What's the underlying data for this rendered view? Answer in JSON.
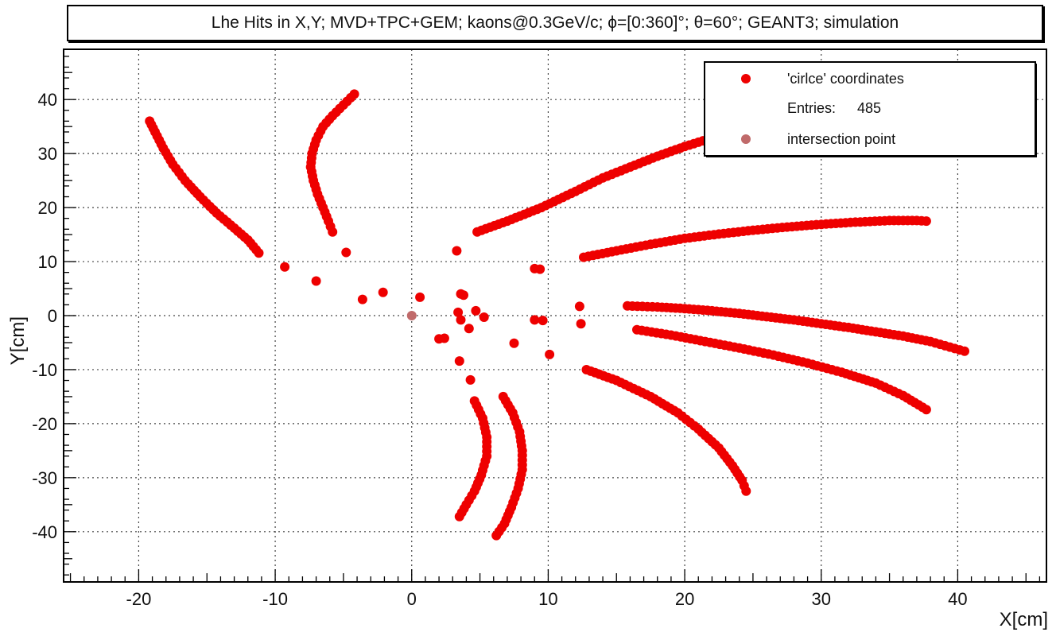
{
  "chart_data": {
    "type": "scatter",
    "title": "Lhe Hits in X,Y; MVD+TPC+GEM; kaons@0.3GeV/c; ϕ=[0:360]°; θ=60°; GEANT3; simulation",
    "xlabel": "X[cm]",
    "ylabel": "Y[cm]",
    "xlim": [
      -25.5,
      46.5
    ],
    "ylim": [
      -49.3,
      49.3
    ],
    "x_ticks": [
      -20,
      -10,
      0,
      10,
      20,
      30,
      40
    ],
    "y_ticks": [
      -40,
      -30,
      -20,
      -10,
      0,
      10,
      20,
      30,
      40
    ],
    "grid": true,
    "legend_position": "top-right",
    "legend": {
      "entries_label": "Entries:",
      "entries_value": "485"
    },
    "series": [
      {
        "name": "'cirlce' coordinates",
        "color": "#ee0000",
        "tracks": [
          [
            [
              -19.2,
              36.0
            ],
            [
              -18.8,
              34.0
            ],
            [
              -18.2,
              31.0
            ],
            [
              -17.5,
              28.0
            ],
            [
              -16.6,
              25.0
            ],
            [
              -15.5,
              22.0
            ],
            [
              -14.3,
              19.0
            ],
            [
              -13.0,
              16.2
            ],
            [
              -12.0,
              14.0
            ],
            [
              -11.2,
              11.6
            ]
          ],
          [
            [
              -4.2,
              41.0
            ],
            [
              -5.0,
              39.0
            ],
            [
              -5.8,
              37.0
            ],
            [
              -6.5,
              35.0
            ],
            [
              -7.0,
              32.5
            ],
            [
              -7.3,
              30.0
            ],
            [
              -7.4,
              27.5
            ],
            [
              -7.2,
              25.0
            ],
            [
              -6.9,
              22.5
            ],
            [
              -6.5,
              20.0
            ],
            [
              -6.1,
              17.5
            ],
            [
              -5.8,
              15.5
            ]
          ],
          [
            [
              4.8,
              15.5
            ],
            [
              7.0,
              17.5
            ],
            [
              9.5,
              20.0
            ],
            [
              12.0,
              23.0
            ],
            [
              14.0,
              25.5
            ],
            [
              16.0,
              27.5
            ],
            [
              18.0,
              29.5
            ],
            [
              20.0,
              31.3
            ],
            [
              22.0,
              32.9
            ],
            [
              24.0,
              34.2
            ],
            [
              25.7,
              35.2
            ]
          ],
          [
            [
              12.6,
              10.8
            ],
            [
              15.0,
              12.0
            ],
            [
              17.5,
              13.2
            ],
            [
              20.0,
              14.3
            ],
            [
              22.5,
              15.1
            ],
            [
              25.0,
              15.8
            ],
            [
              27.5,
              16.4
            ],
            [
              30.0,
              16.9
            ],
            [
              32.5,
              17.3
            ],
            [
              35.0,
              17.6
            ],
            [
              37.0,
              17.6
            ],
            [
              37.7,
              17.5
            ]
          ],
          [
            [
              15.8,
              1.8
            ],
            [
              18.0,
              1.6
            ],
            [
              20.0,
              1.3
            ],
            [
              22.0,
              0.9
            ],
            [
              24.0,
              0.4
            ],
            [
              26.0,
              -0.2
            ],
            [
              28.0,
              -0.8
            ],
            [
              30.0,
              -1.5
            ],
            [
              32.0,
              -2.2
            ],
            [
              34.0,
              -3.0
            ],
            [
              36.0,
              -3.8
            ],
            [
              38.0,
              -4.8
            ],
            [
              40.5,
              -6.6
            ]
          ],
          [
            [
              16.5,
              -2.6
            ],
            [
              19.0,
              -3.6
            ],
            [
              21.5,
              -4.8
            ],
            [
              24.0,
              -6.0
            ],
            [
              26.5,
              -7.3
            ],
            [
              29.0,
              -8.8
            ],
            [
              31.5,
              -10.5
            ],
            [
              34.0,
              -12.5
            ],
            [
              36.0,
              -14.8
            ],
            [
              37.7,
              -17.4
            ]
          ],
          [
            [
              12.8,
              -10.0
            ],
            [
              15.0,
              -12.0
            ],
            [
              17.5,
              -15.0
            ],
            [
              19.5,
              -18.0
            ],
            [
              21.0,
              -21.0
            ],
            [
              22.5,
              -24.5
            ],
            [
              23.5,
              -27.8
            ],
            [
              24.2,
              -30.5
            ],
            [
              24.5,
              -32.5
            ]
          ],
          [
            [
              4.6,
              -15.8
            ],
            [
              5.2,
              -19.0
            ],
            [
              5.5,
              -22.5
            ],
            [
              5.5,
              -26.0
            ],
            [
              5.1,
              -29.5
            ],
            [
              4.6,
              -32.5
            ],
            [
              4.0,
              -35.0
            ],
            [
              3.5,
              -37.2
            ]
          ],
          [
            [
              6.7,
              -15.0
            ],
            [
              7.4,
              -18.0
            ],
            [
              7.9,
              -21.5
            ],
            [
              8.1,
              -25.0
            ],
            [
              8.1,
              -28.5
            ],
            [
              7.8,
              -32.0
            ],
            [
              7.3,
              -35.5
            ],
            [
              6.8,
              -38.5
            ],
            [
              6.2,
              -40.7
            ]
          ]
        ],
        "isolated": [
          [
            -9.3,
            9.0
          ],
          [
            -7.0,
            6.4
          ],
          [
            -4.8,
            11.7
          ],
          [
            -3.6,
            3.0
          ],
          [
            -2.1,
            4.3
          ],
          [
            0.6,
            3.4
          ],
          [
            3.3,
            12.0
          ],
          [
            3.6,
            4.0
          ],
          [
            3.8,
            3.8
          ],
          [
            3.4,
            0.6
          ],
          [
            3.6,
            -0.8
          ],
          [
            3.5,
            -8.4
          ],
          [
            4.2,
            -2.4
          ],
          [
            4.3,
            -11.9
          ],
          [
            4.7,
            0.9
          ],
          [
            5.3,
            -0.3
          ],
          [
            2.4,
            -4.2
          ],
          [
            2.0,
            -4.3
          ],
          [
            7.5,
            -5.1
          ],
          [
            9.0,
            8.7
          ],
          [
            9.4,
            8.6
          ],
          [
            9.0,
            -0.8
          ],
          [
            9.6,
            -0.9
          ],
          [
            10.1,
            -7.2
          ],
          [
            12.3,
            1.7
          ],
          [
            12.4,
            -1.5
          ]
        ]
      },
      {
        "name": "intersection point",
        "color": "#c06a6a",
        "points": [
          [
            0.0,
            0.0
          ]
        ]
      }
    ]
  }
}
